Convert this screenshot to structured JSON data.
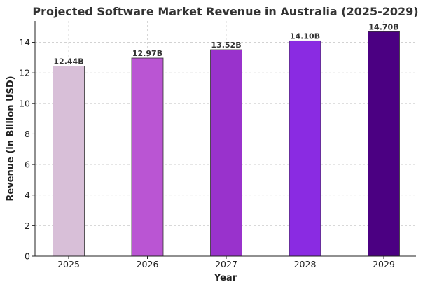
{
  "chart_data": {
    "type": "bar",
    "title": "Projected Software Market Revenue in Australia (2025-2029)",
    "xlabel": "Year",
    "ylabel": "Revenue (in Billion USD)",
    "categories": [
      "2025",
      "2026",
      "2027",
      "2028",
      "2029"
    ],
    "values": [
      12.44,
      12.97,
      13.52,
      14.1,
      14.7
    ],
    "data_labels": [
      "12.44B",
      "12.97B",
      "13.52B",
      "14.10B",
      "14.70B"
    ],
    "bar_colors": [
      "#d8bfd8",
      "#ba55d3",
      "#9932cc",
      "#8a2be2",
      "#4b0082"
    ],
    "ylim": [
      0,
      15.4
    ],
    "yticks": [
      0,
      2,
      4,
      6,
      8,
      10,
      12,
      14
    ],
    "grid": true,
    "legend": "none"
  }
}
